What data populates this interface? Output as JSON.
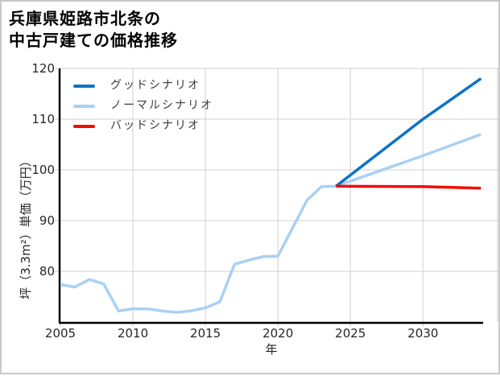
{
  "title": {
    "line1": "兵庫県姫路市北条の",
    "line2": "中古戸建ての価格推移"
  },
  "colors": {
    "good_scenario": "#0d72c8",
    "normal_scenario": "#a9d0f5",
    "bad_scenario": "#f20d00",
    "gridline": "#d9d9d9",
    "axis_spine": "#000000",
    "tick_text": "#262626",
    "legend_text": "#3a3a3a",
    "page_border": "#c9c9c9"
  },
  "chart_data": {
    "type": "line",
    "title": "兵庫県姫路市北条の中古戸建ての価格推移",
    "xlabel": "年",
    "ylabel": "坪（3.3m²）単価（万円）",
    "xlim": [
      2005,
      2035.2
    ],
    "ylim": [
      70,
      120
    ],
    "x_ticks": [
      2005,
      2010,
      2015,
      2020,
      2025,
      2030
    ],
    "y_ticks": [
      80,
      90,
      100,
      110,
      120
    ],
    "grid": true,
    "legend": {
      "position": "upper-left-inside",
      "entries": [
        {
          "label": "グッドシナリオ",
          "color": "#0d72c8"
        },
        {
          "label": "ノーマルシナリオ",
          "color": "#a9d0f5"
        },
        {
          "label": "バッドシナリオ",
          "color": "#f20d00"
        }
      ]
    },
    "series": [
      {
        "name": "ノーマルシナリオ",
        "color": "#a9d0f5",
        "x": [
          2005,
          2006,
          2007,
          2008,
          2009,
          2010,
          2011,
          2012,
          2013,
          2014,
          2015,
          2016,
          2017,
          2018,
          2019,
          2020,
          2021,
          2022,
          2023,
          2024,
          2030,
          2034
        ],
        "y": [
          77.4,
          76.9,
          78.4,
          77.5,
          72.2,
          72.6,
          72.6,
          72.2,
          71.9,
          72.2,
          72.8,
          74.0,
          81.4,
          82.2,
          82.9,
          83.0,
          88.5,
          94.0,
          96.7,
          96.8,
          102.8,
          107.0
        ]
      },
      {
        "name": "グッドシナリオ",
        "color": "#0d72c8",
        "x": [
          2024,
          2030,
          2034
        ],
        "y": [
          96.8,
          110.0,
          118.0
        ]
      },
      {
        "name": "バッドシナリオ",
        "color": "#f20d00",
        "x": [
          2024,
          2030,
          2034
        ],
        "y": [
          96.8,
          96.7,
          96.4
        ]
      }
    ]
  }
}
